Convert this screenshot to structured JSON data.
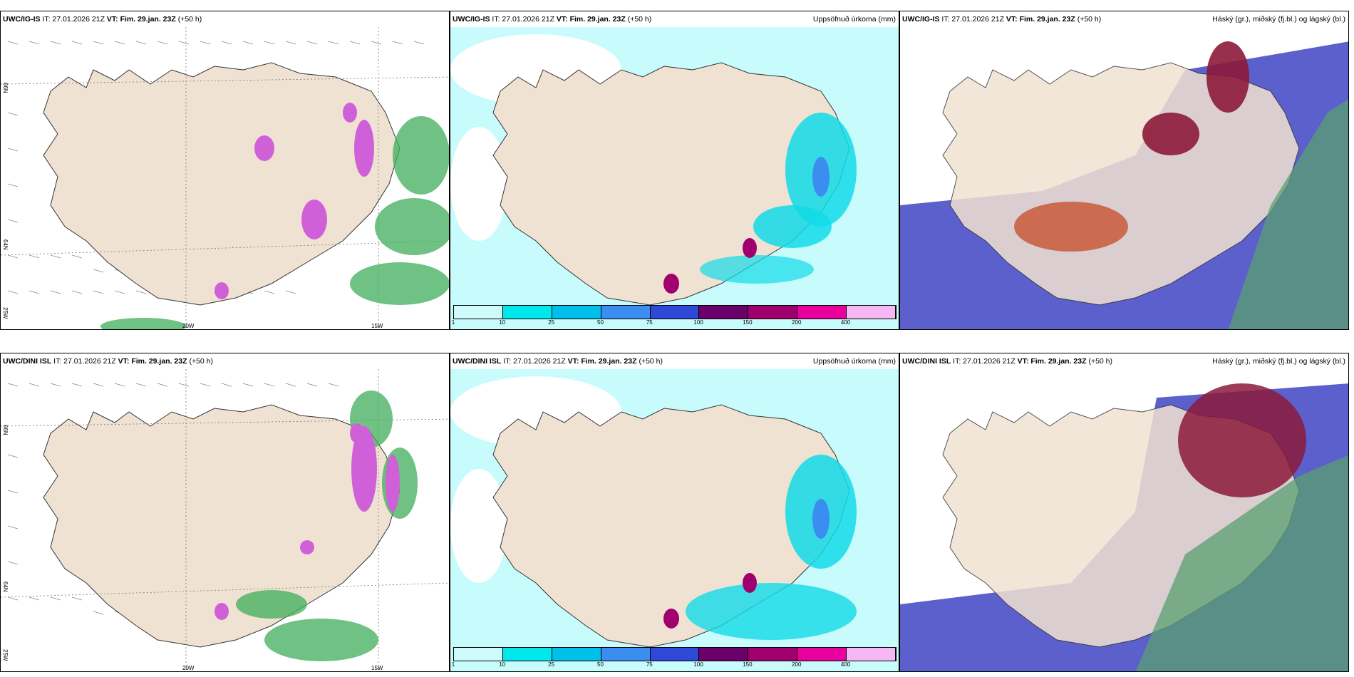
{
  "panels": [
    {
      "model": "UWC/IG-IS",
      "it": "27.01.2026 21Z",
      "vt_label": "VT:",
      "vt": "Fim. 29.jan. 23Z",
      "lead": "(+50 h)",
      "right_title": "",
      "lat1": "66N",
      "lat2": "64N",
      "lon1": "20W",
      "lon2": "15W",
      "lon3": "25W"
    },
    {
      "model": "UWC/IG-IS",
      "it": "27.01.2026 21Z",
      "vt_label": "VT:",
      "vt": "Fim. 29.jan. 23Z",
      "lead": "(+50 h)",
      "right_title": "Uppsöfnuð úrkoma (mm)"
    },
    {
      "model": "UWC/IG-IS",
      "it": "27.01.2026 21Z",
      "vt_label": "VT:",
      "vt": "Fim. 29.jan. 23Z",
      "lead": "(+50 h)",
      "right_title": "Háský (gr.), miðský (fj.bl.) og lágský (bl.)"
    },
    {
      "model": "UWC/DINI ISL",
      "it": "27.01.2026 21Z",
      "vt_label": "VT:",
      "vt": "Fim. 29.jan. 23Z",
      "lead": "(+50 h)",
      "right_title": "",
      "lat1": "66N",
      "lat2": "64N",
      "lon1": "20W",
      "lon2": "15W",
      "lon3": "25W"
    },
    {
      "model": "UWC/DINI ISL",
      "it": "27.01.2026 21Z",
      "vt_label": "VT:",
      "vt": "Fim. 29.jan. 23Z",
      "lead": "(+50 h)",
      "right_title": "Uppsöfnuð úrkoma (mm)"
    },
    {
      "model": "UWC/DINI ISL",
      "it": "27.01.2026 21Z",
      "vt_label": "VT:",
      "vt": "Fim. 29.jan. 23Z",
      "lead": "(+50 h)",
      "right_title": "Háský (gr.), miðský (fj.bl.) og lágský (bl.)"
    }
  ],
  "colorbar": {
    "ticks": [
      "1",
      "10",
      "25",
      "50",
      "75",
      "100",
      "150",
      "200",
      "400"
    ],
    "colors": [
      "#cffafa",
      "#00e8ec",
      "#00c0ea",
      "#3b8ef0",
      "#3048d8",
      "#6a006a",
      "#a0006e",
      "#e8009c",
      "#f5b8f5"
    ]
  },
  "colors": {
    "land": "#f0e2d2",
    "sea": "#ffffff",
    "precip_light": "#c8fbfb",
    "precip_mid": "#12dbe8",
    "snow": "#d060d8",
    "rain_green": "#3fae5a",
    "cloud_high": "#8b1a3a",
    "cloud_mid": "#4a4fc8",
    "cloud_low": "#5a9f70"
  }
}
